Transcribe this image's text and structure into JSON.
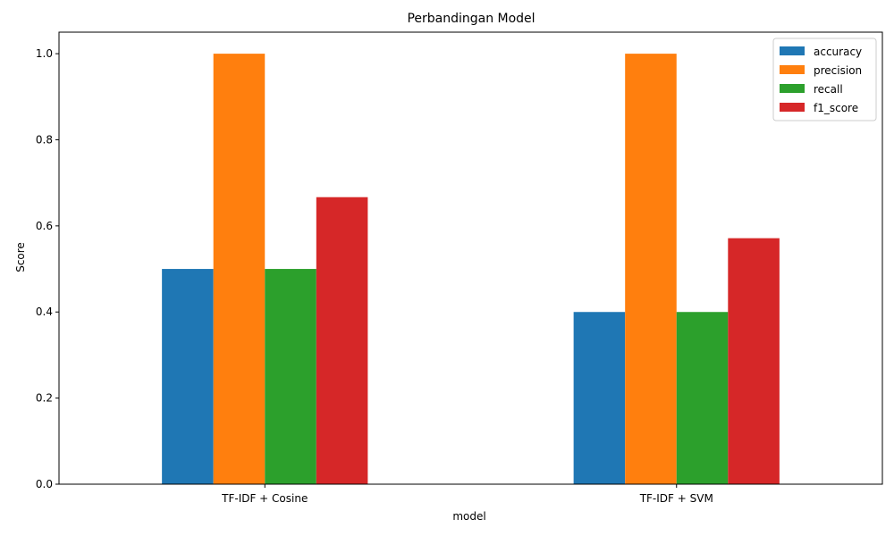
{
  "chart_data": {
    "type": "bar",
    "title": "Perbandingan Model",
    "xlabel": "model",
    "ylabel": "Score",
    "categories": [
      "TF-IDF + Cosine",
      "TF-IDF + SVM"
    ],
    "series": [
      {
        "name": "accuracy",
        "color": "#1f77b4",
        "values": [
          0.5,
          0.4
        ]
      },
      {
        "name": "precision",
        "color": "#ff7f0e",
        "values": [
          1.0,
          1.0
        ]
      },
      {
        "name": "recall",
        "color": "#2ca02c",
        "values": [
          0.5,
          0.4
        ]
      },
      {
        "name": "f1_score",
        "color": "#d62728",
        "values": [
          0.6667,
          0.5714
        ]
      }
    ],
    "ylim": [
      0,
      1.05
    ],
    "yticks": [
      "0.0",
      "0.2",
      "0.4",
      "0.6",
      "0.8",
      "1.0"
    ],
    "grid": false,
    "legend_position": "top-right"
  }
}
